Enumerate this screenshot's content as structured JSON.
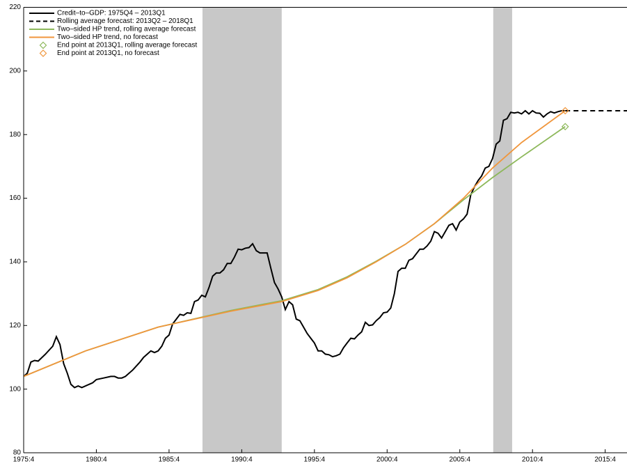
{
  "chart_data": {
    "type": "line",
    "xlim": [
      1975.75,
      2017.25
    ],
    "ylim": [
      80,
      220
    ],
    "yticks": [
      80,
      100,
      120,
      140,
      160,
      180,
      200,
      220
    ],
    "xticks": [
      {
        "value": 1975.75,
        "label": "1975:4"
      },
      {
        "value": 1980.75,
        "label": "1980:4"
      },
      {
        "value": 1985.75,
        "label": "1985:4"
      },
      {
        "value": 1990.75,
        "label": "1990:4"
      },
      {
        "value": 1995.75,
        "label": "1995:4"
      },
      {
        "value": 2000.75,
        "label": "2000:4"
      },
      {
        "value": 2005.75,
        "label": "2005:4"
      },
      {
        "value": 2010.75,
        "label": "2010:4"
      },
      {
        "value": 2015.75,
        "label": "2015:4"
      }
    ],
    "shaded_periods": [
      [
        1988.05,
        1993.5
      ],
      [
        2008.05,
        2009.35
      ]
    ],
    "shade_color": "#c8c8c8",
    "legend": "upper left",
    "series": [
      {
        "name": "Credit–to–GDP: 1975Q4 – 2013Q1",
        "color": "#000000",
        "style": "solid",
        "x": [
          1975.75,
          1976.0,
          1976.25,
          1976.5,
          1976.75,
          1977.25,
          1977.75,
          1978.0,
          1978.25,
          1978.5,
          1978.75,
          1979.0,
          1979.25,
          1979.5,
          1979.75,
          1980.25,
          1980.5,
          1980.75,
          1981.25,
          1981.75,
          1982.0,
          1982.25,
          1982.5,
          1982.75,
          1983.25,
          1983.75,
          1984.0,
          1984.5,
          1984.75,
          1985.0,
          1985.25,
          1985.5,
          1985.75,
          1986.0,
          1986.25,
          1986.5,
          1986.75,
          1987.0,
          1987.25,
          1987.5,
          1987.75,
          1988.0,
          1988.25,
          1988.5,
          1988.75,
          1989.0,
          1989.25,
          1989.5,
          1989.75,
          1990.0,
          1990.25,
          1990.5,
          1990.75,
          1991.0,
          1991.25,
          1991.5,
          1991.75,
          1992.0,
          1992.25,
          1992.5,
          1992.75,
          1993.0,
          1993.25,
          1993.5,
          1993.75,
          1994.0,
          1994.25,
          1994.5,
          1994.75,
          1995.0,
          1995.25,
          1995.5,
          1995.75,
          1996.0,
          1996.25,
          1996.5,
          1996.75,
          1997.0,
          1997.25,
          1997.5,
          1997.75,
          1998.0,
          1998.25,
          1998.5,
          1998.75,
          1999.0,
          1999.25,
          1999.5,
          1999.75,
          2000.0,
          2000.25,
          2000.5,
          2000.75,
          2001.0,
          2001.25,
          2001.5,
          2001.75,
          2002.0,
          2002.25,
          2002.5,
          2002.75,
          2003.0,
          2003.25,
          2003.5,
          2003.75,
          2004.0,
          2004.25,
          2004.5,
          2004.75,
          2005.0,
          2005.25,
          2005.5,
          2005.75,
          2006.0,
          2006.25,
          2006.5,
          2006.75,
          2007.0,
          2007.25,
          2007.5,
          2007.75,
          2008.0,
          2008.25,
          2008.5,
          2008.75,
          2009.0,
          2009.25,
          2009.5,
          2009.75,
          2010.0,
          2010.25,
          2010.5,
          2010.75,
          2011.0,
          2011.25,
          2011.5,
          2011.75,
          2012.0,
          2012.25,
          2012.5,
          2012.75,
          2013.0
        ],
        "values": [
          104,
          105,
          108.5,
          109,
          108.8,
          111,
          113.5,
          116.5,
          114,
          108,
          105,
          101.5,
          100.5,
          101,
          100.5,
          101.5,
          102,
          103,
          103.5,
          104,
          104,
          103.5,
          103.5,
          104,
          106,
          108.5,
          110,
          112,
          111.5,
          112,
          113.5,
          116,
          117,
          120.5,
          122,
          123.5,
          123.2,
          124,
          123.8,
          127.5,
          128,
          129.5,
          129,
          132,
          135.5,
          136.5,
          136.5,
          137.5,
          139.5,
          139.5,
          141.5,
          144,
          143.8,
          144.3,
          144.5,
          145.7,
          143.5,
          142.8,
          142.8,
          142.8,
          138,
          133.5,
          131.5,
          129,
          125,
          127.5,
          126.5,
          122,
          121.5,
          119.5,
          117.5,
          116,
          114.5,
          112,
          112,
          111,
          110.8,
          110.2,
          110.5,
          111,
          113,
          114.5,
          116,
          115.8,
          117,
          118,
          121,
          120,
          120.2,
          121.5,
          122.5,
          124,
          124.2,
          125.5,
          130,
          137,
          138,
          138,
          140.5,
          141,
          142.5,
          144,
          144,
          145,
          146.5,
          149.5,
          149,
          147.5,
          149.5,
          151.5,
          152,
          150,
          152.5,
          153.5,
          155,
          161,
          163.5,
          165.5,
          167,
          169.5,
          170,
          172.5,
          177,
          178,
          184.5,
          185,
          187,
          186.8,
          187,
          186.5,
          187.5,
          186.5,
          187.5,
          186.8,
          186.7,
          185.5,
          186.5,
          187.2,
          186.8,
          187.2,
          187.5,
          187.5
        ]
      },
      {
        "name": "Rolling average forecast: 2013Q2 – 2018Q1",
        "color": "#000000",
        "style": "dashed",
        "x": [
          2013.0,
          2018.0
        ],
        "values": [
          187.5,
          187.5
        ]
      },
      {
        "name": "Two–sided HP trend, rolling average forecast",
        "color": "#8db85a",
        "style": "solid",
        "x": [
          1975.75,
          1980,
          1985,
          1990,
          1993.5,
          1996,
          1998,
          2000,
          2002,
          2004,
          2006,
          2008,
          2010,
          2013
        ],
        "values": [
          104,
          112,
          119.5,
          124.7,
          127.8,
          131.3,
          135.3,
          140.2,
          145.5,
          152,
          159.5,
          166.5,
          173,
          182.5
        ]
      },
      {
        "name": "Two–sided HP trend, no forecast",
        "color": "#f0963c",
        "style": "solid",
        "x": [
          1975.75,
          1980,
          1985,
          1990,
          1993.5,
          1996,
          1998,
          2000,
          2002,
          2004,
          2006,
          2008,
          2010,
          2013
        ],
        "values": [
          104,
          112,
          119.5,
          124.5,
          127.5,
          131,
          135,
          140,
          145.5,
          152,
          160,
          169.5,
          177.5,
          187.5
        ]
      },
      {
        "name": "End point at 2013Q1, rolling average forecast",
        "color": "#8db85a",
        "style": "diamond",
        "x": [
          2013.0
        ],
        "values": [
          182.5
        ]
      },
      {
        "name": "End point at 2013Q1, no forecast",
        "color": "#f0963c",
        "style": "diamond",
        "x": [
          2013.0
        ],
        "values": [
          187.5
        ]
      }
    ]
  }
}
